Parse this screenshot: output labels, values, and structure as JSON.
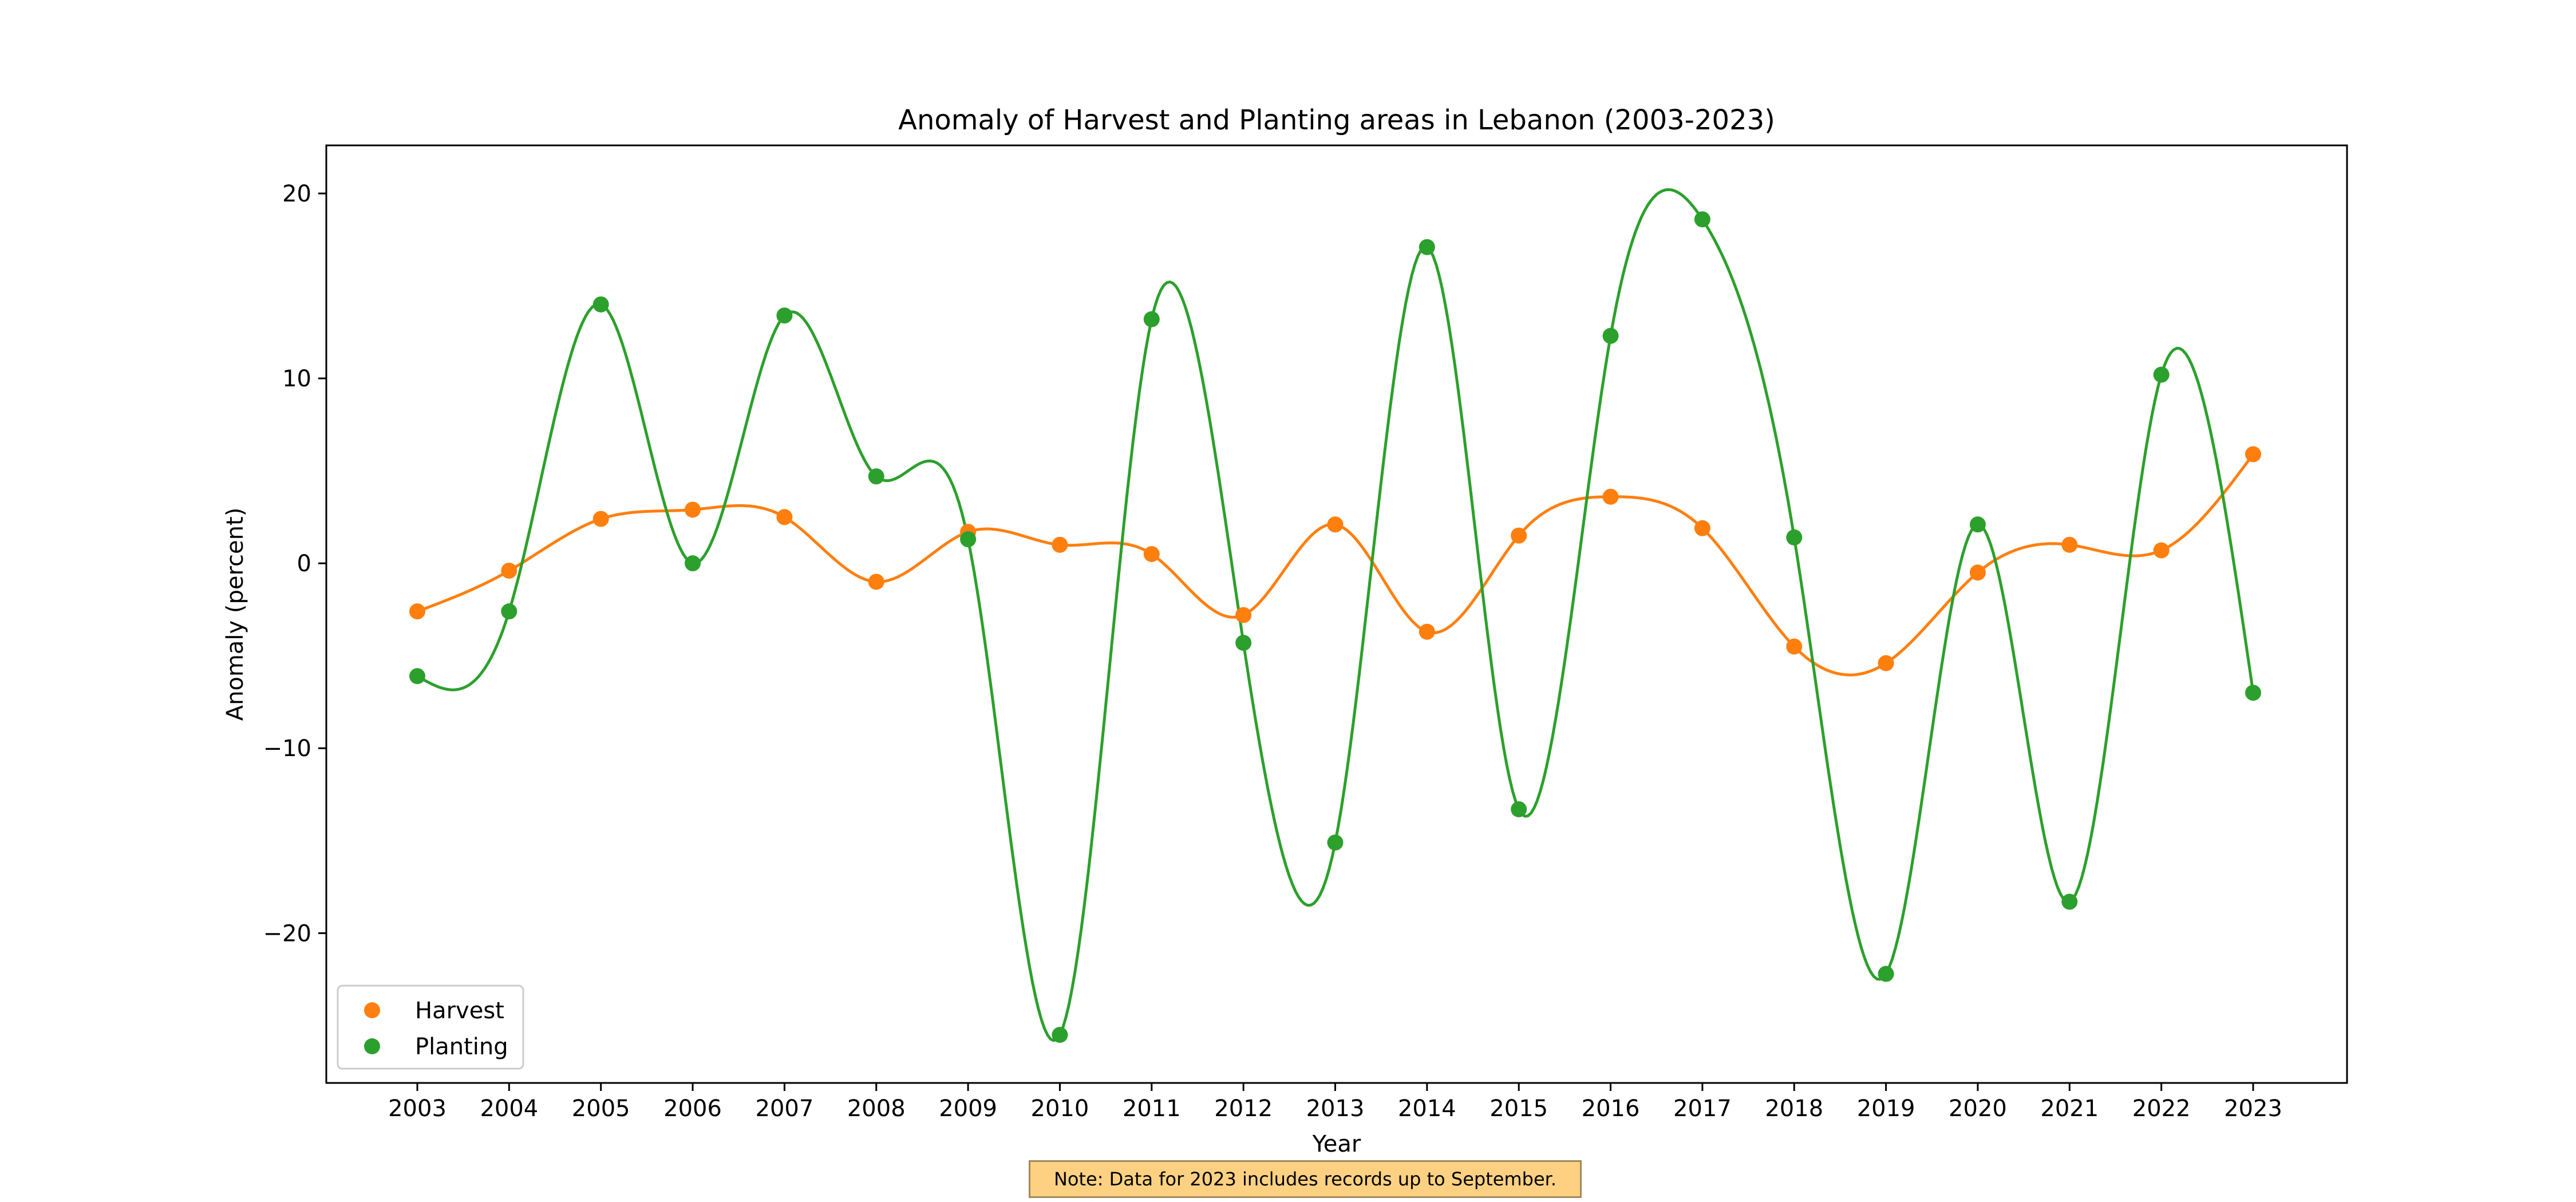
{
  "chart_data": {
    "type": "line",
    "title": "Anomaly of Harvest and Planting areas in Lebanon (2003-2023)",
    "xlabel": "Year",
    "ylabel": "Anomaly (percent)",
    "x": [
      2003,
      2004,
      2005,
      2006,
      2007,
      2008,
      2009,
      2010,
      2011,
      2012,
      2013,
      2014,
      2015,
      2016,
      2017,
      2018,
      2019,
      2020,
      2021,
      2022,
      2023
    ],
    "x_tick_labels": [
      "2003",
      "2004",
      "2005",
      "2006",
      "2007",
      "2008",
      "2009",
      "2010",
      "2011",
      "2012",
      "2013",
      "2014",
      "2015",
      "2016",
      "2017",
      "2018",
      "2019",
      "2020",
      "2021",
      "2022",
      "2023"
    ],
    "y_ticks": [
      20,
      10,
      0,
      -10,
      -20
    ],
    "y_tick_labels": [
      "20",
      "10",
      "0",
      "−10",
      "−20"
    ],
    "xlim": [
      2002,
      2024
    ],
    "ylim": [
      -28.1,
      22.6
    ],
    "grid": false,
    "legend_position": "lower-left",
    "smoothed_lines": true,
    "series": [
      {
        "name": "Harvest",
        "color": "#ff7f0e",
        "values": [
          -2.6,
          -0.4,
          2.4,
          2.9,
          2.5,
          -1.0,
          1.7,
          1.0,
          0.5,
          -2.8,
          2.1,
          -3.7,
          1.5,
          3.6,
          1.9,
          -4.5,
          -5.4,
          -0.5,
          1.0,
          0.7,
          5.9
        ]
      },
      {
        "name": "Planting",
        "color": "#2ca02c",
        "values": [
          -6.1,
          -2.6,
          14.0,
          0.0,
          13.4,
          4.7,
          1.3,
          -25.5,
          13.2,
          -4.3,
          -15.1,
          17.1,
          -13.3,
          12.3,
          18.6,
          1.4,
          -22.2,
          2.1,
          -18.3,
          10.2,
          -7.0
        ]
      }
    ],
    "annotation": "Note: Data for 2023 includes records up to September."
  }
}
